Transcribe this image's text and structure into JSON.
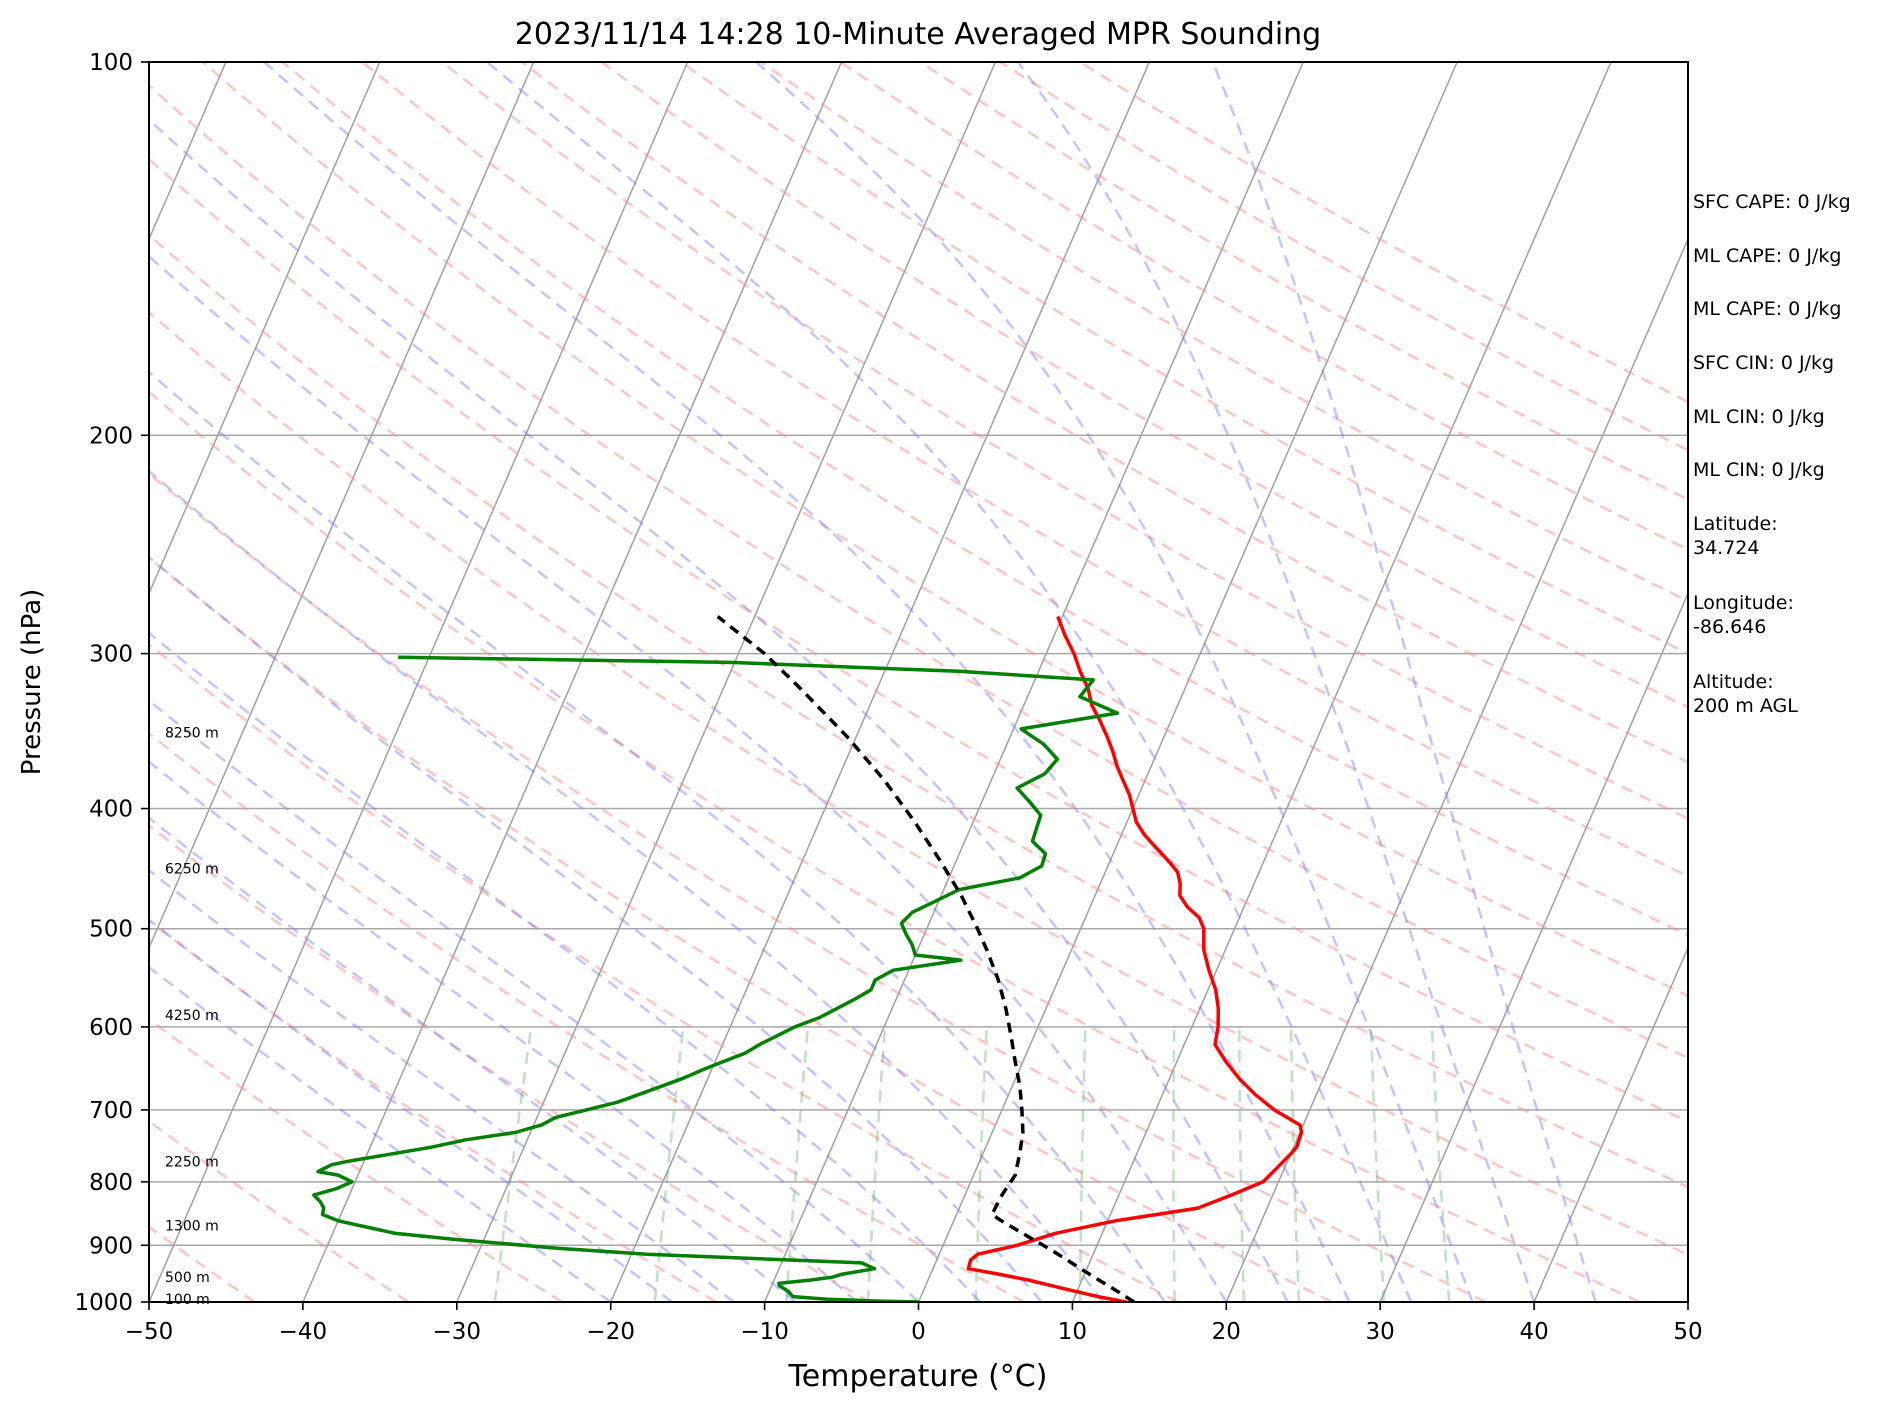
{
  "chart_data": {
    "type": "line",
    "title": "2023/11/14 14:28 10-Minute Averaged MPR Sounding",
    "xlabel": "Temperature (°C)",
    "ylabel": "Pressure (hPa)",
    "xlim": [
      -50,
      50
    ],
    "ylim": [
      1000,
      100
    ],
    "y_scale": "log",
    "x_ticks": [
      -50,
      -40,
      -30,
      -20,
      -10,
      0,
      10,
      20,
      30,
      40,
      50
    ],
    "x_tick_labels": [
      "−50",
      "−40",
      "−30",
      "−20",
      "−10",
      "0",
      "10",
      "20",
      "30",
      "40",
      "50"
    ],
    "y_ticks": [
      1000,
      900,
      800,
      700,
      600,
      500,
      400,
      300,
      200,
      100
    ],
    "y_tick_labels": [
      "1000",
      "900",
      "800",
      "700",
      "600",
      "500",
      "400",
      "300",
      "200",
      "100"
    ],
    "grid": true,
    "skew": 35,
    "height_labels": [
      {
        "p": 348,
        "label": "8250 m"
      },
      {
        "p": 448,
        "label": "6250 m"
      },
      {
        "p": 588,
        "label": "4250 m"
      },
      {
        "p": 772,
        "label": "2250 m"
      },
      {
        "p": 869,
        "label": "1300 m"
      },
      {
        "p": 956,
        "label": "500 m"
      },
      {
        "p": 996,
        "label": "100 m"
      }
    ],
    "series": [
      {
        "role": "temperature",
        "color": "#ff0000",
        "points": [
          [
            1000,
            13.5
          ],
          [
            990,
            11.5
          ],
          [
            975,
            9.0
          ],
          [
            960,
            6.5
          ],
          [
            950,
            4.5
          ],
          [
            940,
            2.3
          ],
          [
            925,
            2.2
          ],
          [
            915,
            2.5
          ],
          [
            900,
            4.8
          ],
          [
            880,
            7.0
          ],
          [
            860,
            10.5
          ],
          [
            850,
            13.0
          ],
          [
            840,
            15.5
          ],
          [
            820,
            17.3
          ],
          [
            800,
            19.0
          ],
          [
            780,
            19.5
          ],
          [
            760,
            20.0
          ],
          [
            750,
            20.2
          ],
          [
            730,
            20.1
          ],
          [
            720,
            19.8
          ],
          [
            700,
            17.7
          ],
          [
            680,
            16.0
          ],
          [
            660,
            14.5
          ],
          [
            640,
            13.2
          ],
          [
            620,
            12.0
          ],
          [
            600,
            11.7
          ],
          [
            580,
            11.2
          ],
          [
            560,
            10.5
          ],
          [
            540,
            9.5
          ],
          [
            520,
            8.6
          ],
          [
            510,
            8.3
          ],
          [
            500,
            8.0
          ],
          [
            490,
            7.4
          ],
          [
            480,
            6.3
          ],
          [
            470,
            5.5
          ],
          [
            460,
            5.2
          ],
          [
            450,
            4.7
          ],
          [
            440,
            3.7
          ],
          [
            430,
            2.6
          ],
          [
            420,
            1.5
          ],
          [
            410,
            0.6
          ],
          [
            400,
            0.0
          ],
          [
            390,
            -0.6
          ],
          [
            380,
            -1.4
          ],
          [
            370,
            -2.2
          ],
          [
            360,
            -2.9
          ],
          [
            350,
            -3.7
          ],
          [
            340,
            -4.6
          ],
          [
            330,
            -5.6
          ],
          [
            320,
            -6.3
          ],
          [
            310,
            -7.3
          ],
          [
            300,
            -8.2
          ],
          [
            290,
            -9.3
          ],
          [
            280,
            -10.3
          ]
        ]
      },
      {
        "role": "dewpoint",
        "color": "#008000",
        "points": [
          [
            1000,
            0.0
          ],
          [
            998,
            -3.0
          ],
          [
            995,
            -6.0
          ],
          [
            990,
            -8.3
          ],
          [
            980,
            -8.8
          ],
          [
            970,
            -9.5
          ],
          [
            966,
            -9.6
          ],
          [
            960,
            -7.6
          ],
          [
            955,
            -6.3
          ],
          [
            950,
            -5.8
          ],
          [
            940,
            -3.8
          ],
          [
            930,
            -4.8
          ],
          [
            915,
            -19.0
          ],
          [
            905,
            -25.0
          ],
          [
            890,
            -32.0
          ],
          [
            880,
            -36.0
          ],
          [
            870,
            -38.0
          ],
          [
            860,
            -40.0
          ],
          [
            850,
            -41.2
          ],
          [
            840,
            -41.3
          ],
          [
            830,
            -41.7
          ],
          [
            820,
            -42.3
          ],
          [
            810,
            -41.0
          ],
          [
            800,
            -40.2
          ],
          [
            790,
            -41.3
          ],
          [
            785,
            -42.7
          ],
          [
            775,
            -42.0
          ],
          [
            770,
            -41.0
          ],
          [
            760,
            -38.5
          ],
          [
            750,
            -36.0
          ],
          [
            740,
            -34.0
          ],
          [
            730,
            -31.0
          ],
          [
            720,
            -29.5
          ],
          [
            710,
            -28.8
          ],
          [
            700,
            -27.0
          ],
          [
            690,
            -25.2
          ],
          [
            680,
            -24.0
          ],
          [
            670,
            -22.8
          ],
          [
            660,
            -21.6
          ],
          [
            650,
            -20.6
          ],
          [
            640,
            -19.5
          ],
          [
            630,
            -18.3
          ],
          [
            620,
            -17.6
          ],
          [
            610,
            -16.7
          ],
          [
            600,
            -15.8
          ],
          [
            590,
            -14.5
          ],
          [
            580,
            -13.6
          ],
          [
            570,
            -12.7
          ],
          [
            560,
            -11.9
          ],
          [
            550,
            -11.9
          ],
          [
            540,
            -11.0
          ],
          [
            530,
            -6.9
          ],
          [
            525,
            -10.0
          ],
          [
            515,
            -10.5
          ],
          [
            505,
            -11.2
          ],
          [
            495,
            -11.8
          ],
          [
            485,
            -11.4
          ],
          [
            475,
            -10.2
          ],
          [
            465,
            -9.0
          ],
          [
            455,
            -5.4
          ],
          [
            445,
            -4.3
          ],
          [
            435,
            -4.4
          ],
          [
            425,
            -5.6
          ],
          [
            415,
            -5.7
          ],
          [
            405,
            -5.8
          ],
          [
            395,
            -6.9
          ],
          [
            385,
            -8.1
          ],
          [
            375,
            -6.7
          ],
          [
            365,
            -6.3
          ],
          [
            355,
            -7.6
          ],
          [
            345,
            -9.5
          ],
          [
            335,
            -3.7
          ],
          [
            325,
            -6.6
          ],
          [
            315,
            -6.2
          ],
          [
            310,
            -15.2
          ],
          [
            305,
            -30.0
          ],
          [
            302,
            -52.0
          ]
        ]
      },
      {
        "role": "parcel",
        "color": "#000000",
        "dashed": true,
        "points": [
          [
            1000,
            14.0
          ],
          [
            980,
            12.6
          ],
          [
            960,
            11.1
          ],
          [
            940,
            9.6
          ],
          [
            920,
            8.1
          ],
          [
            900,
            6.5
          ],
          [
            880,
            4.8
          ],
          [
            860,
            3.1
          ],
          [
            850,
            2.3
          ],
          [
            820,
            2.4
          ],
          [
            790,
            2.7
          ],
          [
            760,
            2.4
          ],
          [
            730,
            2.0
          ],
          [
            700,
            1.3
          ],
          [
            670,
            0.5
          ],
          [
            640,
            -0.5
          ],
          [
            610,
            -1.5
          ],
          [
            580,
            -2.6
          ],
          [
            550,
            -3.9
          ],
          [
            520,
            -5.5
          ],
          [
            500,
            -6.7
          ],
          [
            470,
            -8.7
          ],
          [
            440,
            -11.1
          ],
          [
            410,
            -13.8
          ],
          [
            380,
            -16.9
          ],
          [
            350,
            -20.6
          ],
          [
            320,
            -25.0
          ],
          [
            300,
            -28.3
          ],
          [
            280,
            -32.4
          ]
        ]
      }
    ]
  },
  "side_info": {
    "sfc_cape": "SFC CAPE: 0 J/kg",
    "ml_cape_1": "ML CAPE: 0 J/kg",
    "ml_cape_2": "ML CAPE: 0 J/kg",
    "sfc_cin": "SFC CIN: 0 J/kg",
    "ml_cin_1": "ML CIN: 0 J/kg",
    "ml_cin_2": "ML CIN: 0 J/kg",
    "latitude": "Latitude:\n34.724",
    "longitude": "Longitude:\n-86.646",
    "altitude": "Altitude:\n200 m AGL"
  }
}
